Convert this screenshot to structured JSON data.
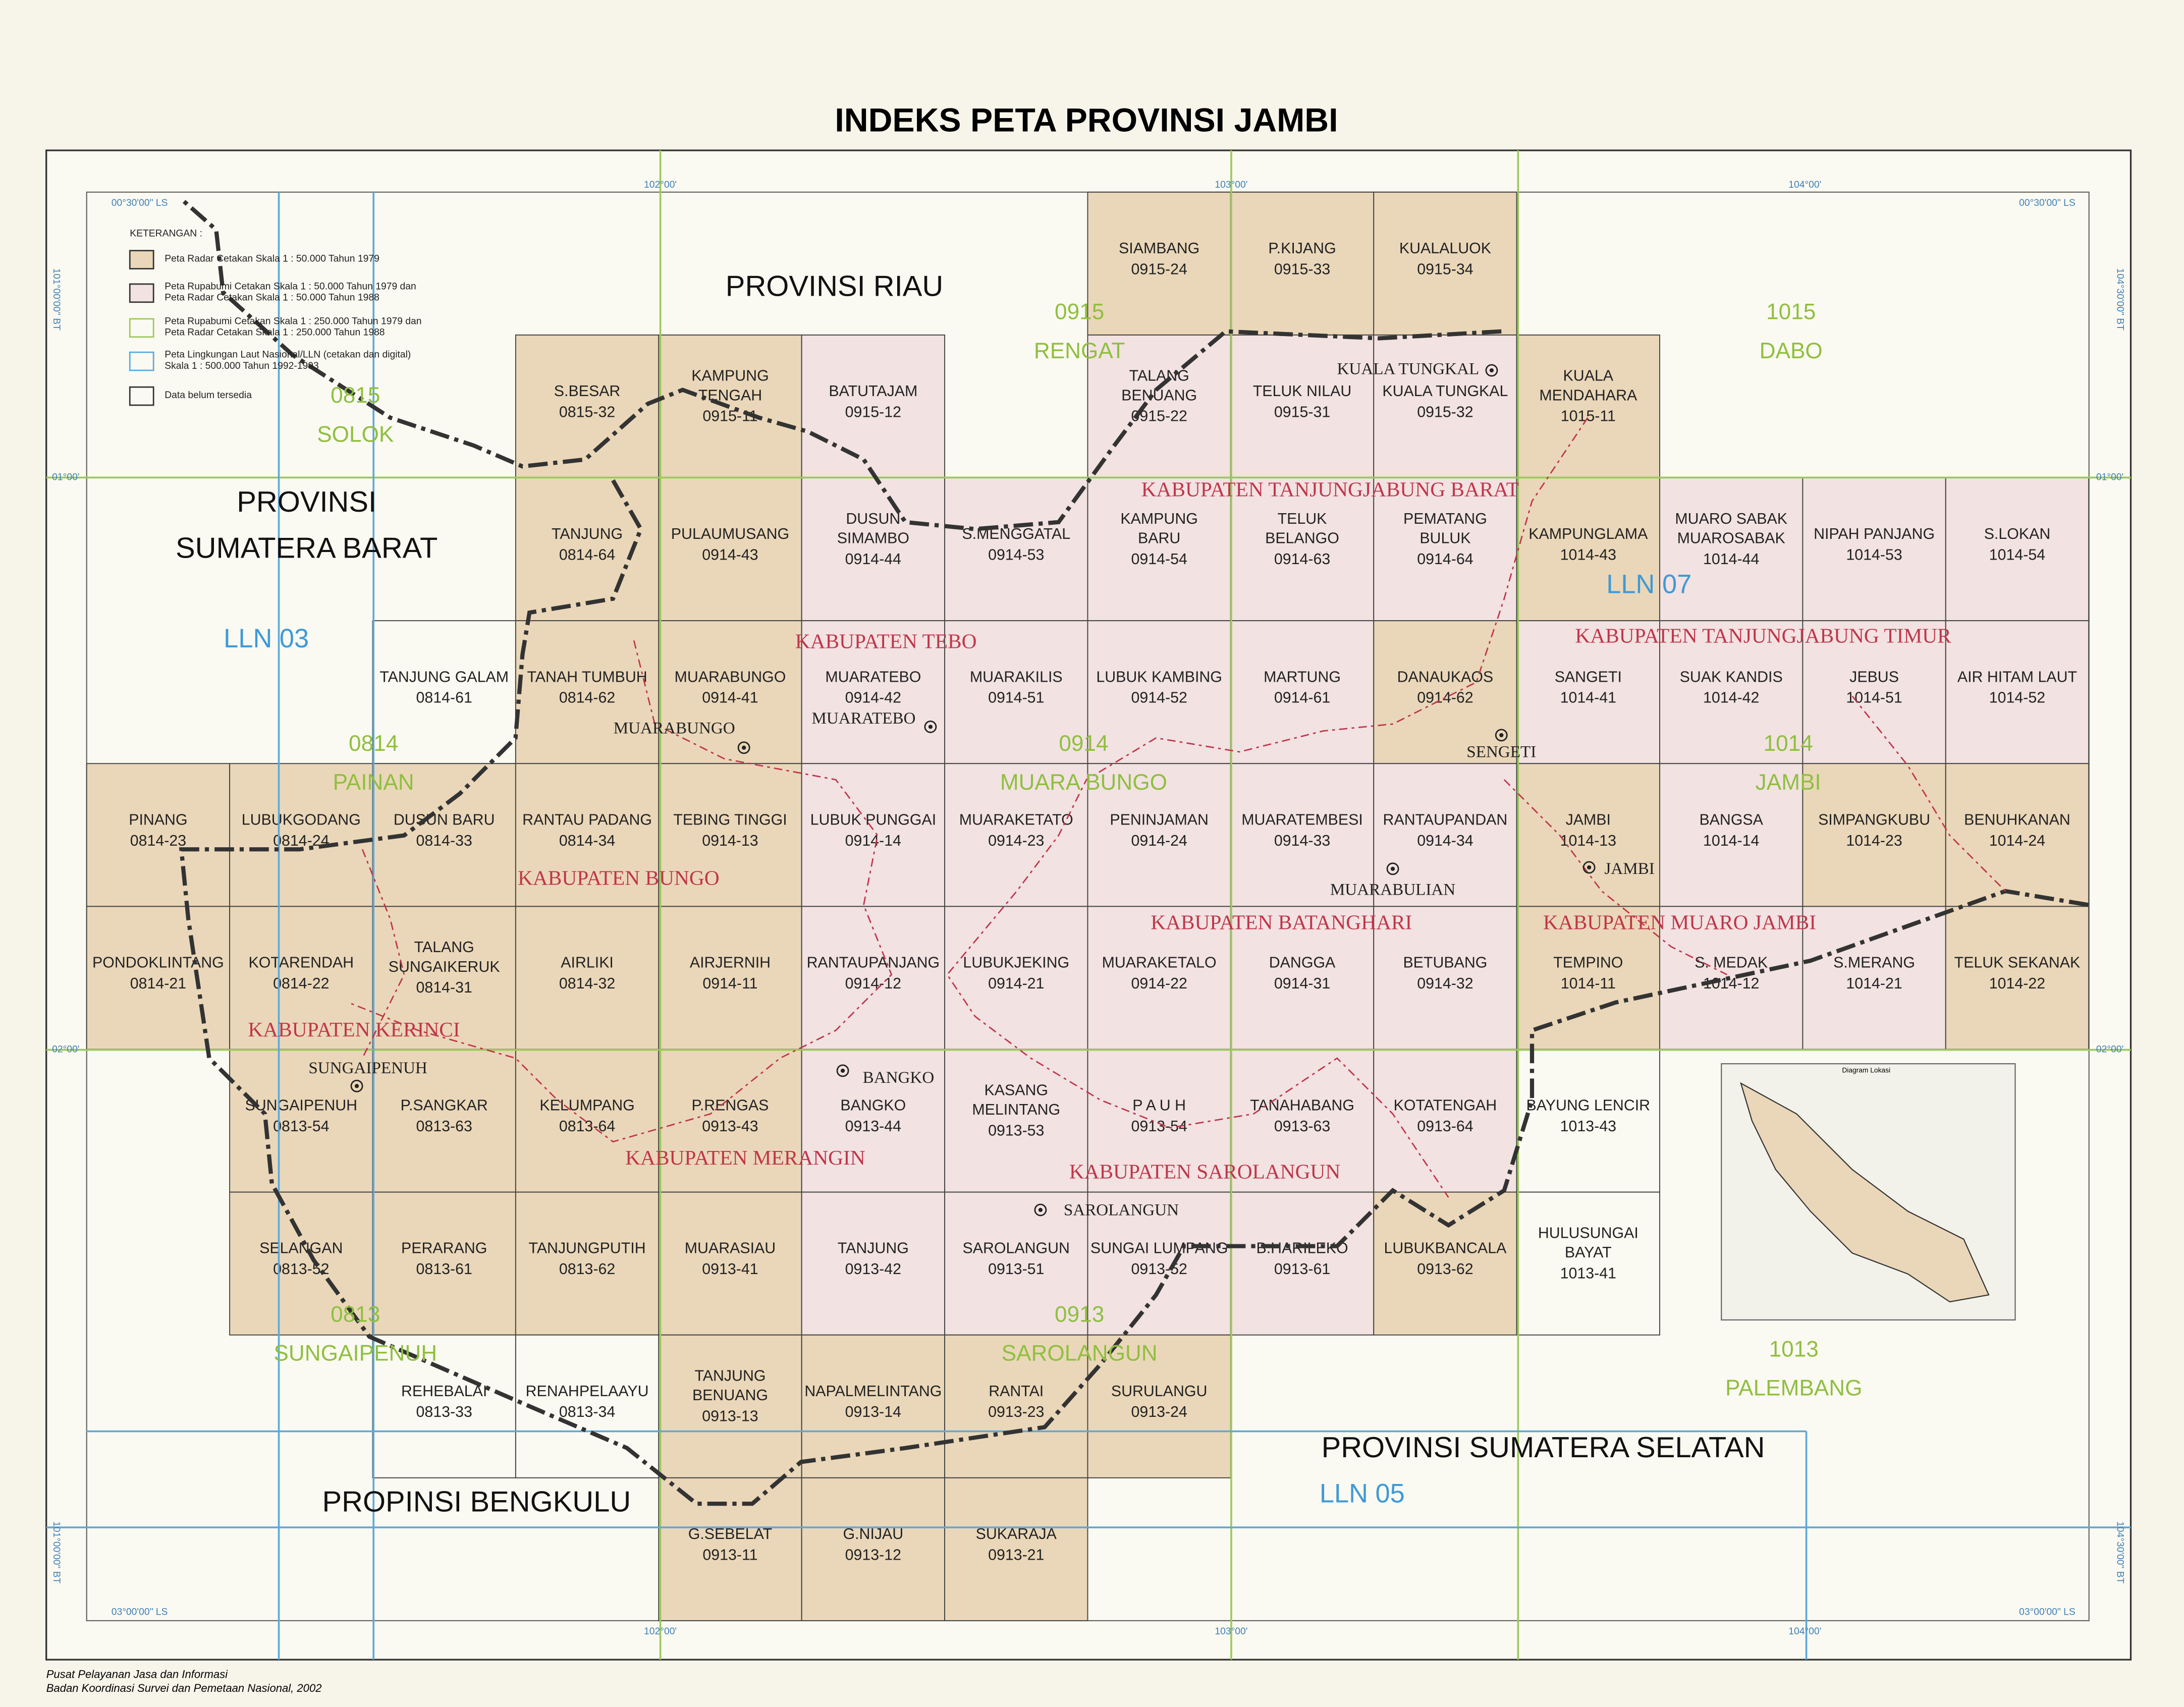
{
  "title": "INDEKS PETA PROVINSI JAMBI",
  "legend": {
    "title": "KETERANGAN :",
    "items": [
      {
        "label": [
          "Peta Radar Cetakan Skala 1 : 50.000 Tahun 1979"
        ],
        "fill": "#ead7b9",
        "stroke": "#333333"
      },
      {
        "label": [
          "Peta Rupabumi Cetakan Skala 1 : 50.000 Tahun 1979 dan",
          "Peta Radar Cetakan Skala 1 : 50.000 Tahun 1988"
        ],
        "fill": "#f2e2e2",
        "stroke": "#333333"
      },
      {
        "label": [
          "Peta Rupabumi Cetakan Skala 1 : 250.000 Tahun 1979 dan",
          "Peta Radar Cetakan Skala 1 : 250.000 Tahun 1988"
        ],
        "fill": "#fbfaf2",
        "stroke": "#9cc95a"
      },
      {
        "label": [
          "Peta Lingkungan Laut Nasional/LLN (cetakan dan digital)",
          "Skala 1 : 500.000 Tahun 1992-1993"
        ],
        "fill": "#fbfaf2",
        "stroke": "#5aa9dc"
      },
      {
        "label": [
          "Data belum tersedia"
        ],
        "fill": "#fbfaf2",
        "stroke": "#333333"
      }
    ]
  },
  "sheets": [
    {
      "name": [
        "SIAMBANG"
      ],
      "code": "0915-24",
      "color": "#ead7b9"
    },
    {
      "name": [
        "P.KIJANG"
      ],
      "code": "0915-33",
      "color": "#ead7b9"
    },
    {
      "name": [
        "KUALALUOK"
      ],
      "code": "0915-34",
      "color": "#ead7b9"
    },
    {
      "name": [
        "S.BESAR"
      ],
      "code": "0815-32",
      "color": "#ead7b9"
    },
    {
      "name": [
        "KAMPUNG",
        "TENGAH"
      ],
      "code": "0915-11",
      "color": "#ead7b9"
    },
    {
      "name": [
        "BATUTAJAM"
      ],
      "code": "0915-12",
      "color": "#f2e2e2"
    },
    {
      "name": [
        "TALANG",
        "BENUANG"
      ],
      "code": "0915-22",
      "color": "#f2e2e2"
    },
    {
      "name": [
        "TELUK NILAU"
      ],
      "code": "0915-31",
      "color": "#f2e2e2"
    },
    {
      "name": [
        "KUALA TUNGKAL"
      ],
      "code": "0915-32",
      "color": "#f2e2e2"
    },
    {
      "name": [
        "KUALA",
        "MENDAHARA"
      ],
      "code": "1015-11",
      "color": "#ead7b9"
    },
    {
      "name": [
        "TANJUNG"
      ],
      "code": "0814-64",
      "color": "#ead7b9"
    },
    {
      "name": [
        "PULAUMUSANG"
      ],
      "code": "0914-43",
      "color": "#ead7b9"
    },
    {
      "name": [
        "DUSUN",
        "SIMAMBO"
      ],
      "code": "0914-44",
      "color": "#f2e2e2"
    },
    {
      "name": [
        "S.MENGGATAL"
      ],
      "code": "0914-53",
      "color": "#f2e2e2"
    },
    {
      "name": [
        "KAMPUNG",
        "BARU"
      ],
      "code": "0914-54",
      "color": "#f2e2e2"
    },
    {
      "name": [
        "TELUK",
        "BELANGO"
      ],
      "code": "0914-63",
      "color": "#f2e2e2"
    },
    {
      "name": [
        "PEMATANG",
        "BULUK"
      ],
      "code": "0914-64",
      "color": "#f2e2e2"
    },
    {
      "name": [
        "KAMPUNGLAMA"
      ],
      "code": "1014-43",
      "color": "#ead7b9"
    },
    {
      "name": [
        "MUARO SABAK",
        "MUAROSABAK"
      ],
      "code": "1014-44",
      "color": "#f2e2e2"
    },
    {
      "name": [
        "NIPAH PANJANG"
      ],
      "code": "1014-53",
      "color": "#f2e2e2"
    },
    {
      "name": [
        "S.LOKAN"
      ],
      "code": "1014-54",
      "color": "#f2e2e2"
    },
    {
      "name": [
        "TANJUNG GALAM"
      ],
      "code": "0814-61",
      "color": "#fbfaf2"
    },
    {
      "name": [
        "TANAH TUMBUH"
      ],
      "code": "0814-62",
      "color": "#ead7b9"
    },
    {
      "name": [
        "MUARABUNGO"
      ],
      "code": "0914-41",
      "color": "#ead7b9"
    },
    {
      "name": [
        "MUARATEBO"
      ],
      "code": "0914-42",
      "color": "#f2e2e2"
    },
    {
      "name": [
        "MUARAKILIS"
      ],
      "code": "0914-51",
      "color": "#f2e2e2"
    },
    {
      "name": [
        "LUBUK KAMBING"
      ],
      "code": "0914-52",
      "color": "#f2e2e2"
    },
    {
      "name": [
        "MARTUNG"
      ],
      "code": "0914-61",
      "color": "#f2e2e2"
    },
    {
      "name": [
        "DANAUKAOS"
      ],
      "code": "0914-62",
      "color": "#ead7b9"
    },
    {
      "name": [
        "SANGETI"
      ],
      "code": "1014-41",
      "color": "#f2e2e2"
    },
    {
      "name": [
        "SUAK KANDIS"
      ],
      "code": "1014-42",
      "color": "#f2e2e2"
    },
    {
      "name": [
        "JEBUS"
      ],
      "code": "1014-51",
      "color": "#f2e2e2"
    },
    {
      "name": [
        "AIR HITAM LAUT"
      ],
      "code": "1014-52",
      "color": "#f2e2e2"
    },
    {
      "name": [
        "PINANG"
      ],
      "code": "0814-23",
      "color": "#ead7b9"
    },
    {
      "name": [
        "LUBUKGODANG"
      ],
      "code": "0814-24",
      "color": "#ead7b9"
    },
    {
      "name": [
        "DUSUN BARU"
      ],
      "code": "0814-33",
      "color": "#ead7b9"
    },
    {
      "name": [
        "RANTAU PADANG"
      ],
      "code": "0814-34",
      "color": "#ead7b9"
    },
    {
      "name": [
        "TEBING TINGGI"
      ],
      "code": "0914-13",
      "color": "#ead7b9"
    },
    {
      "name": [
        "LUBUK PUNGGAI"
      ],
      "code": "0914-14",
      "color": "#f2e2e2"
    },
    {
      "name": [
        "MUARAKETATO"
      ],
      "code": "0914-23",
      "color": "#f2e2e2"
    },
    {
      "name": [
        "PENINJAMAN"
      ],
      "code": "0914-24",
      "color": "#f2e2e2"
    },
    {
      "name": [
        "MUARATEMBESI"
      ],
      "code": "0914-33",
      "color": "#f2e2e2"
    },
    {
      "name": [
        "RANTAUPANDAN"
      ],
      "code": "0914-34",
      "color": "#f2e2e2"
    },
    {
      "name": [
        "JAMBI"
      ],
      "code": "1014-13",
      "color": "#ead7b9"
    },
    {
      "name": [
        "BANGSA"
      ],
      "code": "1014-14",
      "color": "#f2e2e2"
    },
    {
      "name": [
        "SIMPANGKUBU"
      ],
      "code": "1014-23",
      "color": "#ead7b9"
    },
    {
      "name": [
        "BENUHKANAN"
      ],
      "code": "1014-24",
      "color": "#ead7b9"
    },
    {
      "name": [
        "PONDOKLINTANG"
      ],
      "code": "0814-21",
      "color": "#ead7b9"
    },
    {
      "name": [
        "KOTARENDAH"
      ],
      "code": "0814-22",
      "color": "#ead7b9"
    },
    {
      "name": [
        "TALANG",
        "SUNGAIKERUK"
      ],
      "code": "0814-31",
      "color": "#ead7b9"
    },
    {
      "name": [
        "AIRLIKI"
      ],
      "code": "0814-32",
      "color": "#ead7b9"
    },
    {
      "name": [
        "AIRJERNIH"
      ],
      "code": "0914-11",
      "color": "#ead7b9"
    },
    {
      "name": [
        "RANTAUPANJANG"
      ],
      "code": "0914-12",
      "color": "#f2e2e2"
    },
    {
      "name": [
        "LUBUKJEKING"
      ],
      "code": "0914-21",
      "color": "#f2e2e2"
    },
    {
      "name": [
        "MUARAKETALO"
      ],
      "code": "0914-22",
      "color": "#f2e2e2"
    },
    {
      "name": [
        "DANGGA"
      ],
      "code": "0914-31",
      "color": "#f2e2e2"
    },
    {
      "name": [
        "BETUBANG"
      ],
      "code": "0914-32",
      "color": "#f2e2e2"
    },
    {
      "name": [
        "TEMPINO"
      ],
      "code": "1014-11",
      "color": "#ead7b9"
    },
    {
      "name": [
        "S. MEDAK"
      ],
      "code": "1014-12",
      "color": "#f2e2e2"
    },
    {
      "name": [
        "S.MERANG"
      ],
      "code": "1014-21",
      "color": "#f2e2e2"
    },
    {
      "name": [
        "TELUK SEKANAK"
      ],
      "code": "1014-22",
      "color": "#ead7b9"
    },
    {
      "name": [
        "SUNGAIPENUH"
      ],
      "code": "0813-54",
      "color": "#ead7b9"
    },
    {
      "name": [
        "P.SANGKAR"
      ],
      "code": "0813-63",
      "color": "#ead7b9"
    },
    {
      "name": [
        "KELUMPANG"
      ],
      "code": "0813-64",
      "color": "#ead7b9"
    },
    {
      "name": [
        "P.RENGAS"
      ],
      "code": "0913-43",
      "color": "#ead7b9"
    },
    {
      "name": [
        "BANGKO"
      ],
      "code": "0913-44",
      "color": "#f2e2e2"
    },
    {
      "name": [
        "KASANG",
        "MELINTANG"
      ],
      "code": "0913-53",
      "color": "#f2e2e2"
    },
    {
      "name": [
        "P A U H"
      ],
      "code": "0913-54",
      "color": "#f2e2e2"
    },
    {
      "name": [
        "TANAHABANG"
      ],
      "code": "0913-63",
      "color": "#f2e2e2"
    },
    {
      "name": [
        "KOTATENGAH"
      ],
      "code": "0913-64",
      "color": "#f2e2e2"
    },
    {
      "name": [
        "BAYUNG LENCIR"
      ],
      "code": "1013-43",
      "color": "#fbfaf2"
    },
    {
      "name": [
        "SELANGAN"
      ],
      "code": "0813-52",
      "color": "#ead7b9"
    },
    {
      "name": [
        "PERARANG"
      ],
      "code": "0813-61",
      "color": "#ead7b9"
    },
    {
      "name": [
        "TANJUNGPUTIH"
      ],
      "code": "0813-62",
      "color": "#ead7b9"
    },
    {
      "name": [
        "MUARASIAU"
      ],
      "code": "0913-41",
      "color": "#ead7b9"
    },
    {
      "name": [
        "TANJUNG"
      ],
      "code": "0913-42",
      "color": "#f2e2e2"
    },
    {
      "name": [
        "SAROLANGUN"
      ],
      "code": "0913-51",
      "color": "#f2e2e2"
    },
    {
      "name": [
        "SUNGAI LUMPANG"
      ],
      "code": "0913-52",
      "color": "#f2e2e2"
    },
    {
      "name": [
        "B.HARILEKO"
      ],
      "code": "0913-61",
      "color": "#f2e2e2"
    },
    {
      "name": [
        "LUBUKBANCALA"
      ],
      "code": "0913-62",
      "color": "#ead7b9"
    },
    {
      "name": [
        "HULUSUNGAI",
        "BAYAT"
      ],
      "code": "1013-41",
      "color": "#fbfaf2"
    },
    {
      "name": [
        "REHEBALAI"
      ],
      "code": "0813-33",
      "color": "#fbfaf2"
    },
    {
      "name": [
        "RENAHPELAAYU"
      ],
      "code": "0813-34",
      "color": "#fbfaf2"
    },
    {
      "name": [
        "TANJUNG",
        "BENUANG"
      ],
      "code": "0913-13",
      "color": "#ead7b9"
    },
    {
      "name": [
        "NAPALMELINTANG"
      ],
      "code": "0913-14",
      "color": "#ead7b9"
    },
    {
      "name": [
        "RANTAI"
      ],
      "code": "0913-23",
      "color": "#ead7b9"
    },
    {
      "name": [
        "SURULANGU"
      ],
      "code": "0913-24",
      "color": "#ead7b9"
    },
    {
      "name": [
        "G.SEBELAT"
      ],
      "code": "0913-11",
      "color": "#ead7b9"
    },
    {
      "name": [
        "G.NIJAU"
      ],
      "code": "0913-12",
      "color": "#ead7b9"
    },
    {
      "name": [
        "SUKARAJA"
      ],
      "code": "0913-21",
      "color": "#ead7b9"
    }
  ],
  "provinces": [
    [
      "PROVINSI RIAU"
    ],
    [
      "PROVINSI",
      "SUMATERA BARAT"
    ],
    [
      "PROVINSI SUMATERA SELATAN"
    ],
    [
      "PROPINSI BENGKULU"
    ]
  ],
  "regencies": [
    "KABUPATEN TANJUNGJABUNG BARAT",
    "KABUPATEN TEBO",
    "KABUPATEN TANJUNGJABUNG TIMUR",
    "KABUPATEN BUNGO",
    "KABUPATEN BATANGHARI",
    "KABUPATEN MUARO JAMBI",
    "KABUPATEN KERINCI",
    "KABUPATEN MERANGIN",
    "KABUPATEN SAROLANGUN"
  ],
  "sheets_250k": [
    {
      "code": "0815",
      "name": "SOLOK"
    },
    {
      "code": "0915",
      "name": "RENGAT"
    },
    {
      "code": "1015",
      "name": "DABO"
    },
    {
      "code": "0814",
      "name": "PAINAN"
    },
    {
      "code": "0914",
      "name": "MUARA BUNGO"
    },
    {
      "code": "1014",
      "name": "JAMBI"
    },
    {
      "code": "0813",
      "name": "SUNGAIPENUH"
    },
    {
      "code": "0913",
      "name": "SAROLANGUN"
    },
    {
      "code": "1013",
      "name": "PALEMBANG"
    }
  ],
  "lln": [
    "LLN 03",
    "LLN 07",
    "LLN 05"
  ],
  "towns": [
    "KUALA TUNGKAL",
    "MUARABUNGO",
    "MUARATEBO",
    "SENGETI",
    "MUARABULIAN",
    "JAMBI",
    "SUNGAIPENUH",
    "BANGKO",
    "SAROLANGUN"
  ],
  "coordinates": [
    "102°00'",
    "103°00'",
    "104°00'",
    "102°00'",
    "103°00'",
    "104°00'",
    "01°00'",
    "02°00'",
    "01°00'",
    "02°00'",
    "00°30'00\" LS",
    "00°30'00\" LS",
    "03°00'00\" LS",
    "03°00'00\" LS",
    "101°00'00\" BT",
    "101°00'00\" BT",
    "104°30'00\" BT",
    "104°30'00\" BT"
  ],
  "inset": "Diagram Lokasi",
  "footer": [
    "Pusat Pelayanan Jasa dan Informasi",
    "Badan Koordinasi Survei dan Pemetaan Nasional, 2002"
  ]
}
